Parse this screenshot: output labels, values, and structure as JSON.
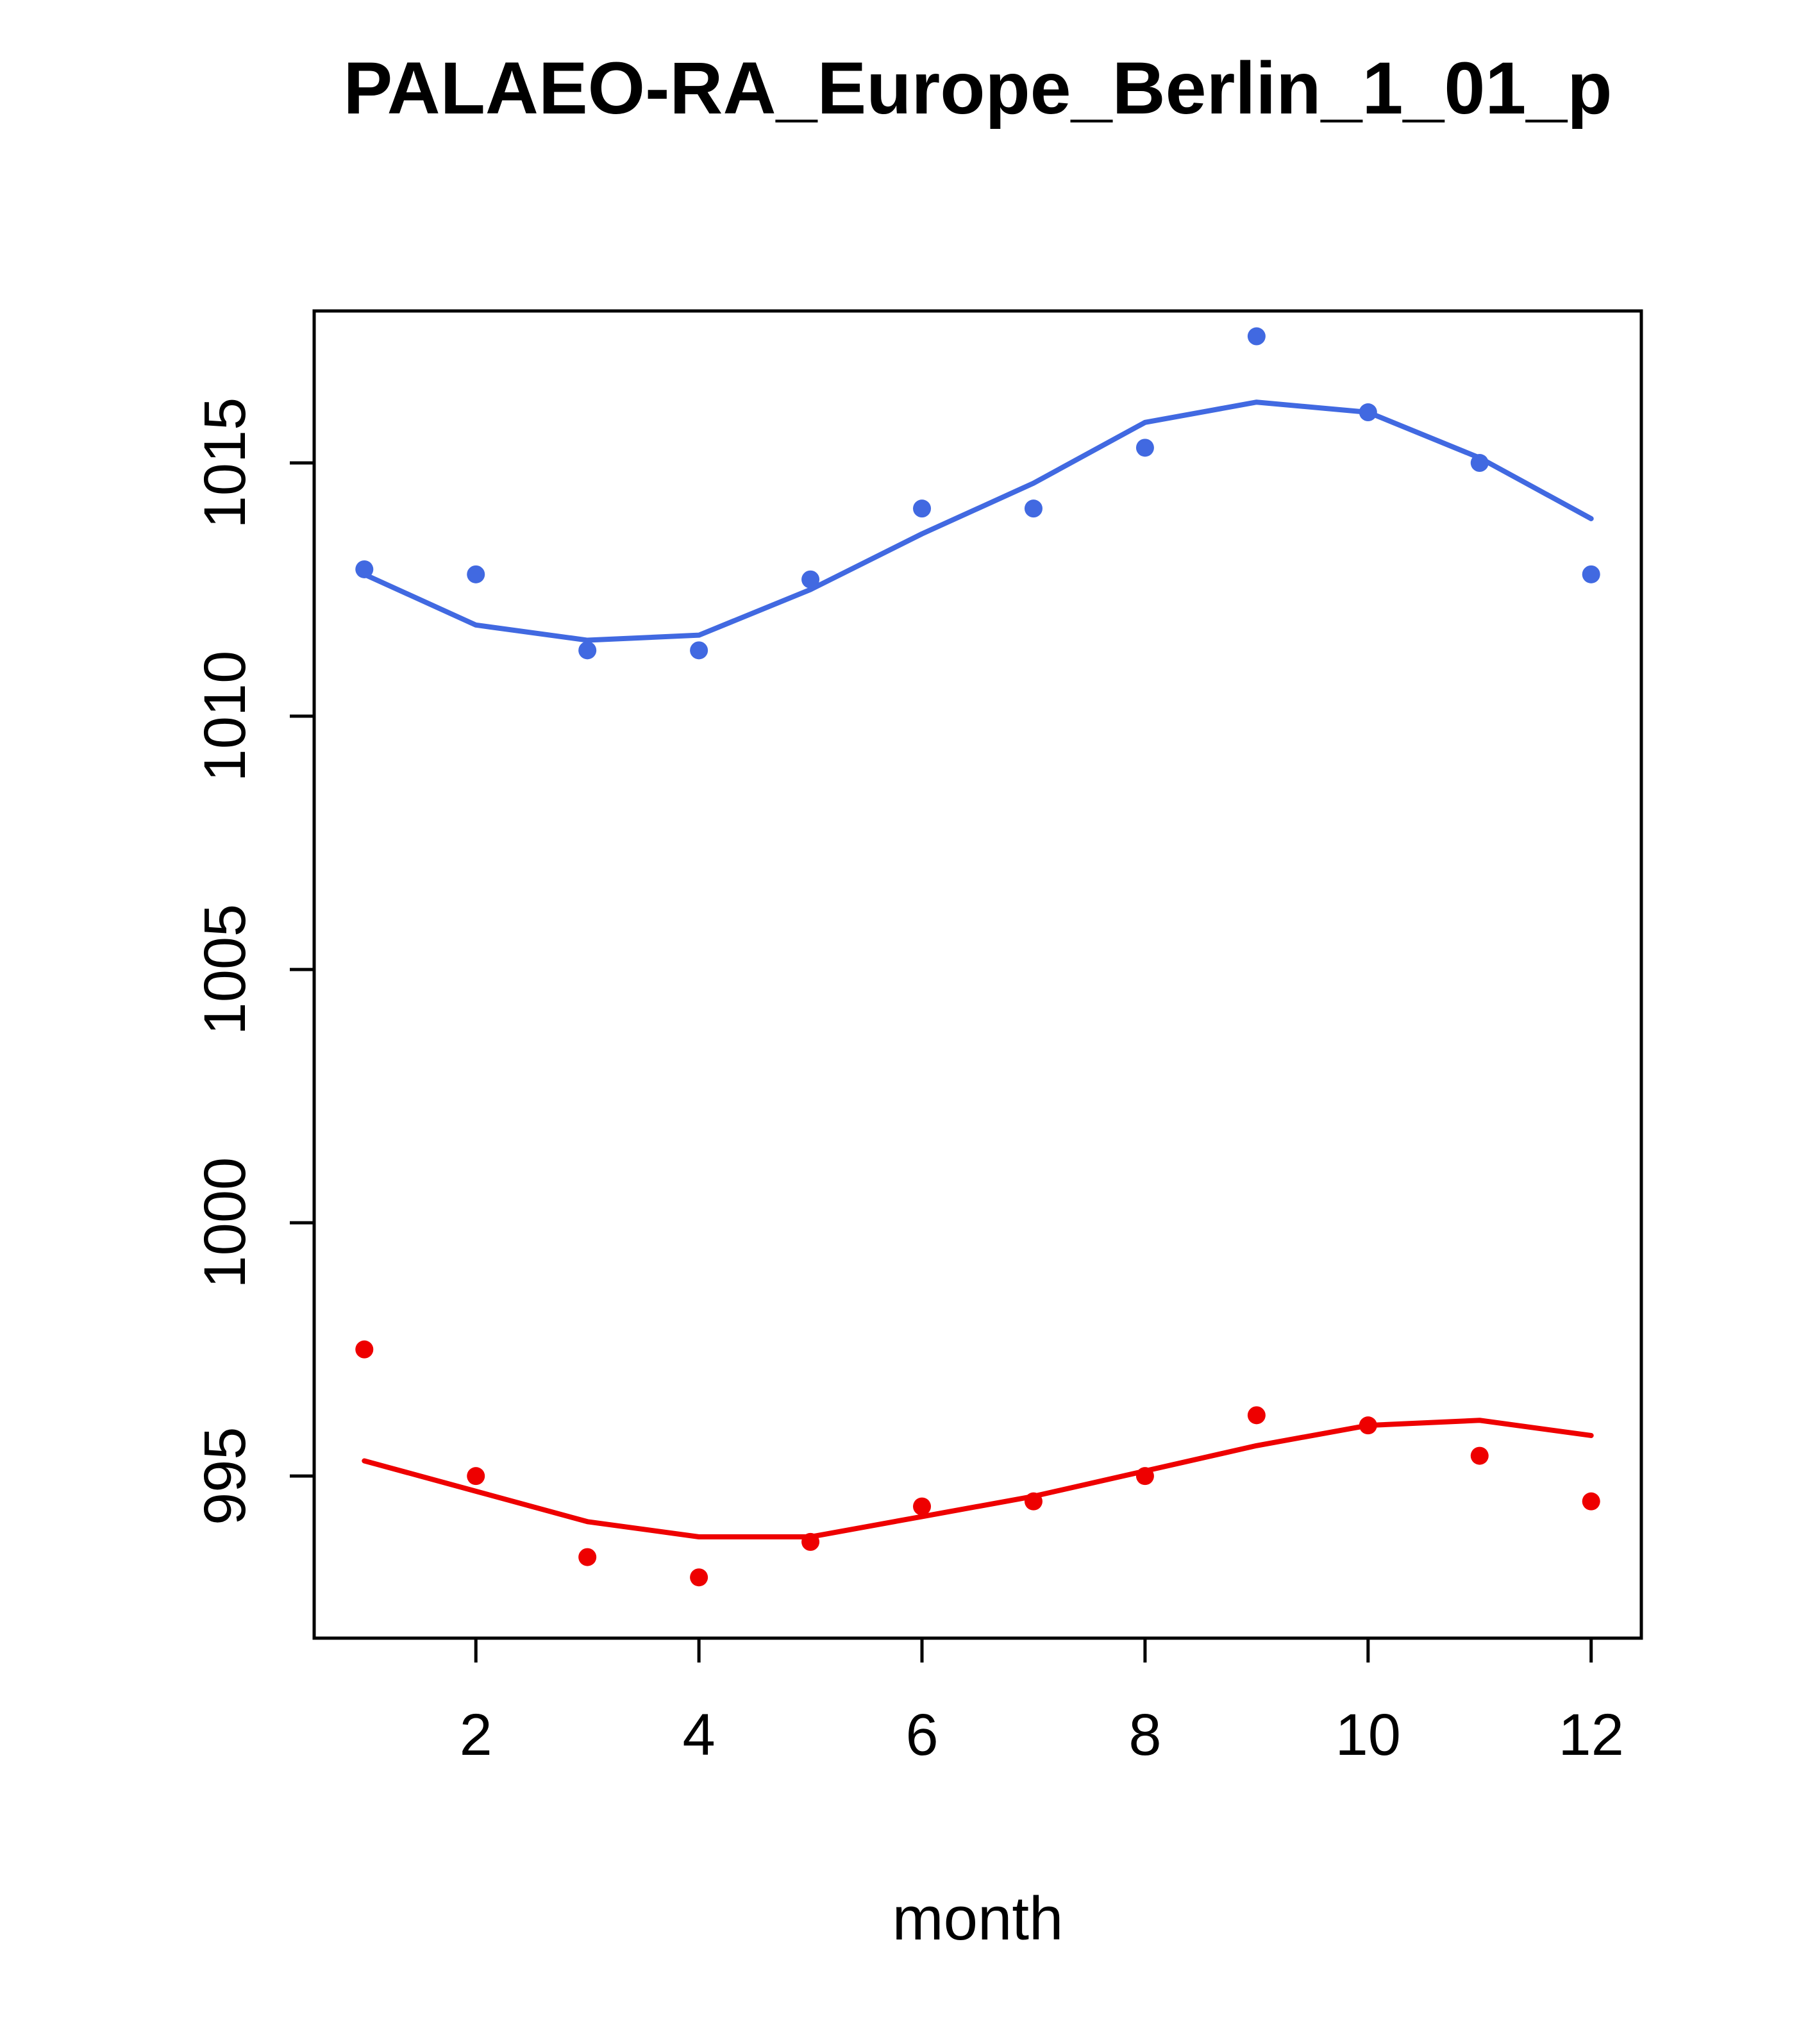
{
  "chart_data": {
    "type": "line",
    "title": "PALAEO-RA_Europe_Berlin_1_01_p",
    "xlabel": "month",
    "ylabel": "",
    "x": [
      1,
      2,
      3,
      4,
      5,
      6,
      7,
      8,
      9,
      10,
      11,
      12
    ],
    "xlim": [
      0.55,
      12.45
    ],
    "ylim": [
      991.8,
      1018.0
    ],
    "x_ticks": [
      2,
      4,
      6,
      8,
      10,
      12
    ],
    "y_ticks": [
      995,
      1000,
      1005,
      1010,
      1015
    ],
    "grid": false,
    "legend": "none",
    "series": [
      {
        "name": "blue-points",
        "style": "points",
        "color": "#4169E1",
        "values": [
          1012.9,
          1012.8,
          1011.3,
          1011.3,
          1012.7,
          1014.1,
          1014.1,
          1015.3,
          1017.5,
          1016.0,
          1015.0,
          1012.8
        ]
      },
      {
        "name": "blue-smooth-line",
        "style": "line",
        "color": "#4169E1",
        "values": [
          1012.8,
          1011.8,
          1011.5,
          1011.6,
          1012.5,
          1013.6,
          1014.6,
          1015.8,
          1016.2,
          1016.0,
          1015.1,
          1013.9
        ]
      },
      {
        "name": "red-points",
        "style": "points",
        "color": "#EE0000",
        "values": [
          997.5,
          995.0,
          993.4,
          993.0,
          993.7,
          994.4,
          994.5,
          995.0,
          996.2,
          996.0,
          995.4,
          994.5
        ]
      },
      {
        "name": "red-smooth-line",
        "style": "line",
        "color": "#EE0000",
        "values": [
          995.3,
          994.7,
          994.1,
          993.8,
          993.8,
          994.2,
          994.6,
          995.1,
          995.6,
          996.0,
          996.1,
          995.8
        ]
      }
    ]
  }
}
